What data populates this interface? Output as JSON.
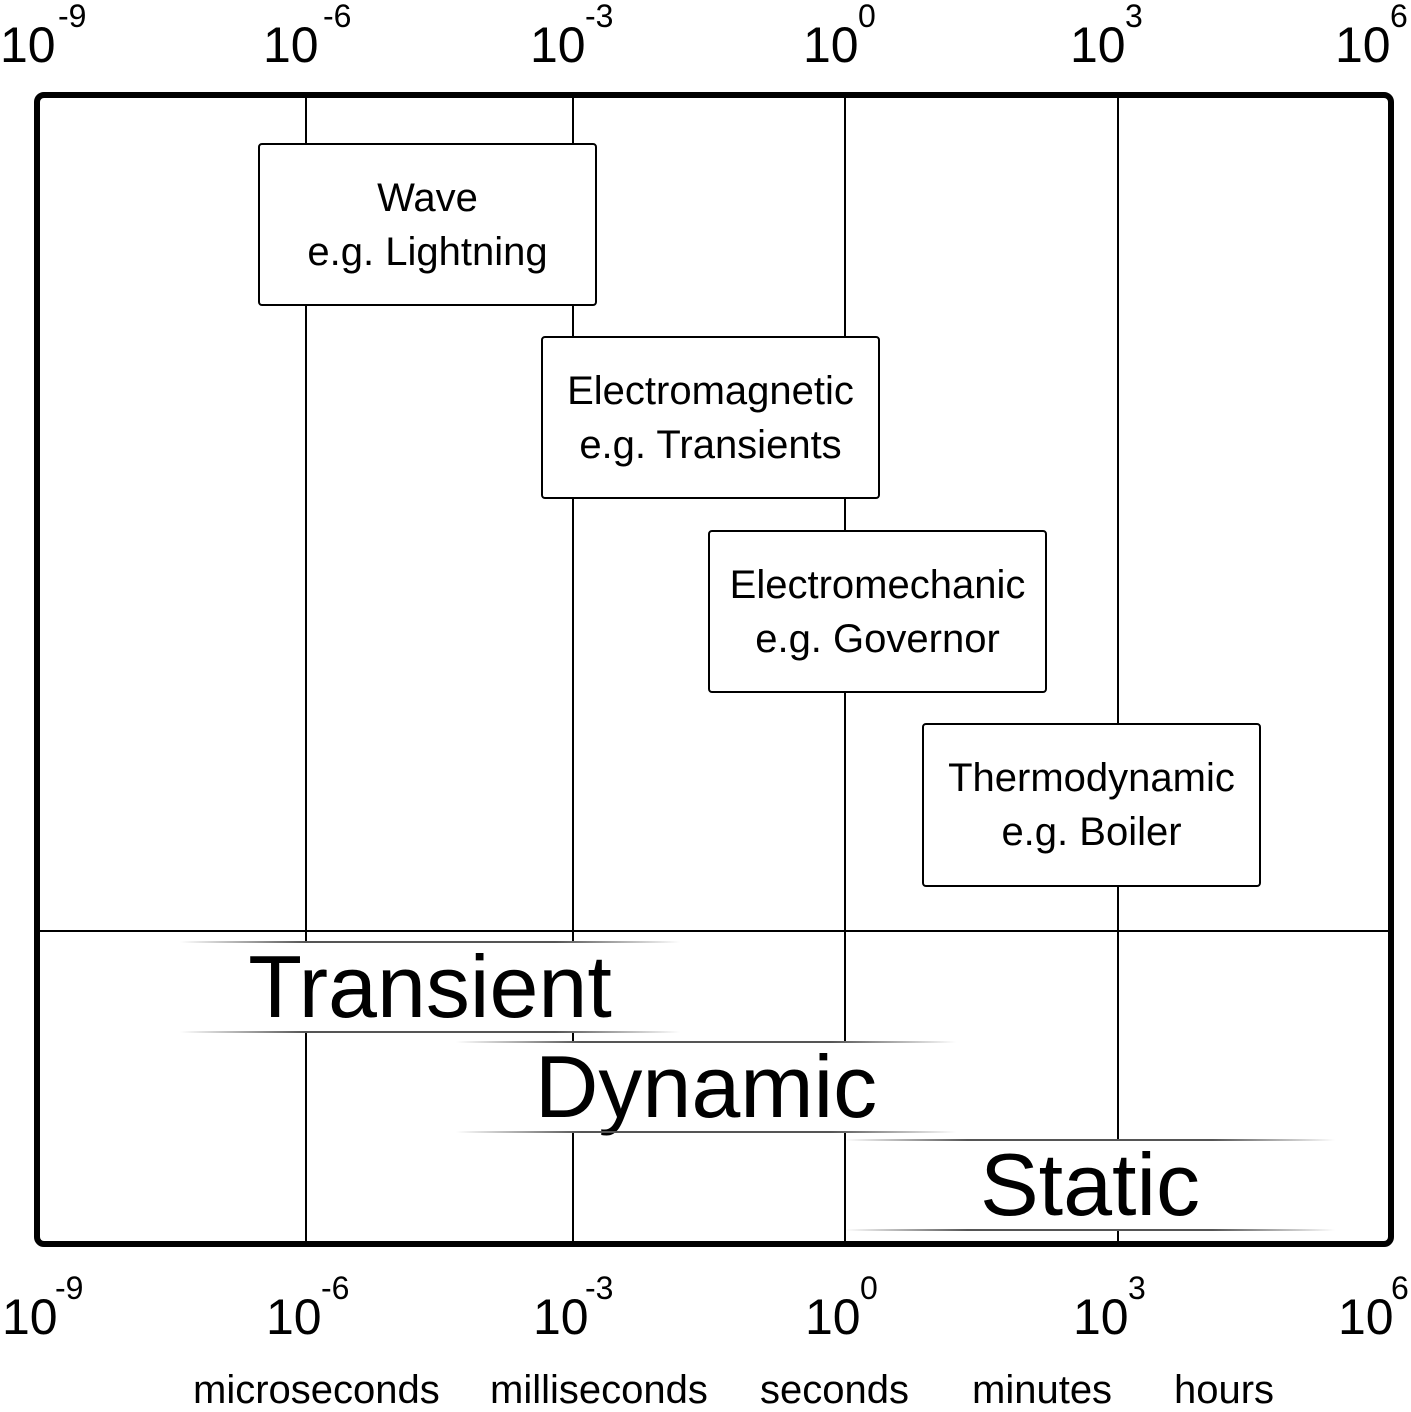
{
  "axis": {
    "ticks": [
      {
        "base": "10",
        "exp": "-9"
      },
      {
        "base": "10",
        "exp": "-6"
      },
      {
        "base": "10",
        "exp": "-3"
      },
      {
        "base": "10",
        "exp": "0"
      },
      {
        "base": "10",
        "exp": "3"
      },
      {
        "base": "10",
        "exp": "6"
      }
    ],
    "units": [
      "microseconds",
      "milliseconds",
      "seconds",
      "minutes",
      "hours"
    ]
  },
  "phenomena": [
    {
      "title": "Wave",
      "example": "e.g. Lightning"
    },
    {
      "title": "Electromagnetic",
      "example": "e.g. Transients"
    },
    {
      "title": "Electromechanic",
      "example": "e.g. Governor"
    },
    {
      "title": "Thermodynamic",
      "example": "e.g. Boiler"
    }
  ],
  "regimes": [
    {
      "label": "Transient"
    },
    {
      "label": "Dynamic"
    },
    {
      "label": "Static"
    }
  ]
}
